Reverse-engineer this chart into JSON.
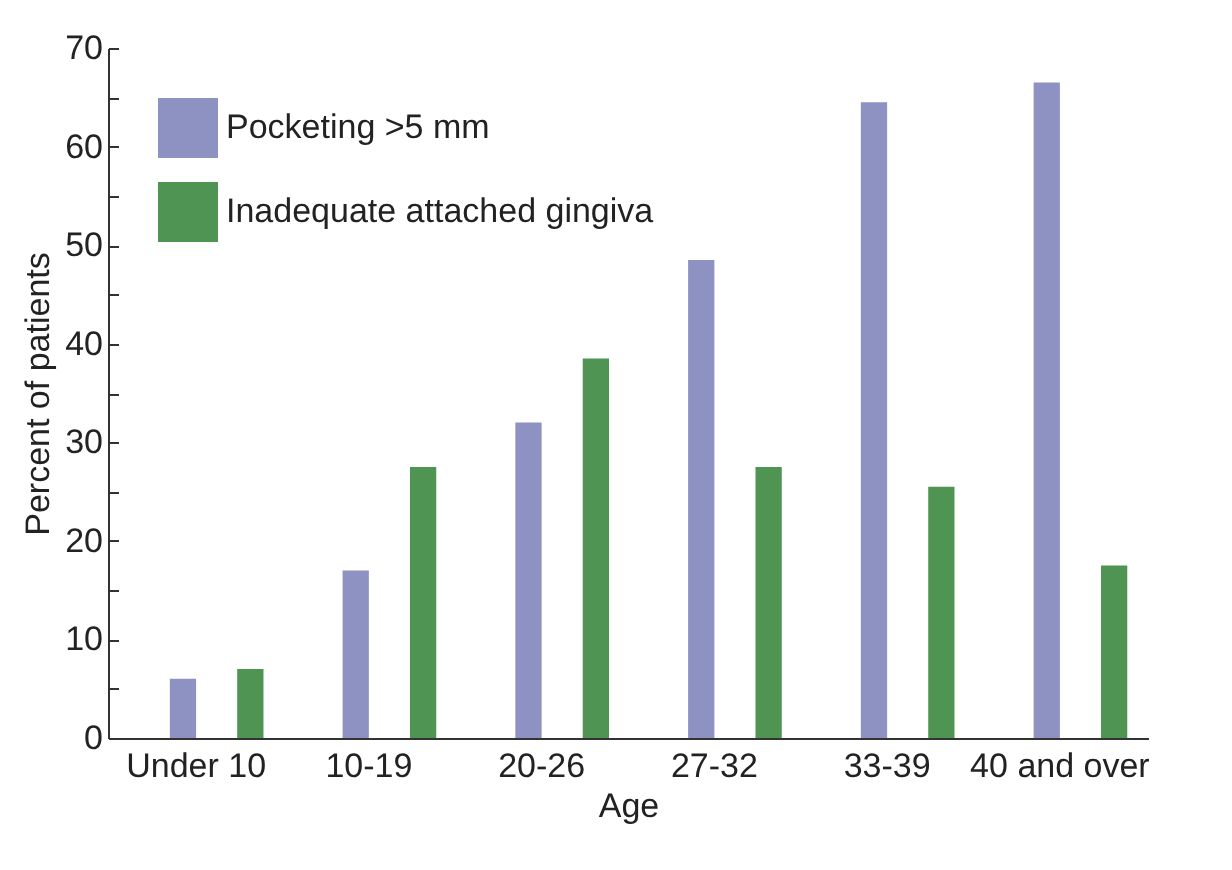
{
  "chart_data": {
    "type": "bar",
    "xlabel": "Age",
    "ylabel": "Percent of patients",
    "categories": [
      "Under 10",
      "10-19",
      "20-26",
      "27-32",
      "33-39",
      "40 and over"
    ],
    "series": [
      {
        "name": "Pocketing >5 mm",
        "color": "#8e92c2",
        "values": [
          6,
          17,
          32,
          48.5,
          64.5,
          66.5
        ]
      },
      {
        "name": "Inadequate attached gingiva",
        "color": "#4f9452",
        "values": [
          7,
          27.5,
          38.5,
          27.5,
          25.5,
          17.5
        ]
      }
    ],
    "ylim": [
      0,
      70
    ],
    "yticks": [
      0,
      {
        "value": 5,
        "label": null
      },
      10,
      {
        "value": 15,
        "label": null
      },
      20,
      {
        "value": 25,
        "label": null
      },
      30,
      {
        "value": 35,
        "label": null
      },
      40,
      {
        "value": 45,
        "label": null
      },
      50,
      {
        "value": 55,
        "label": null
      },
      60,
      {
        "value": 65,
        "label": null
      },
      70
    ],
    "grid": false,
    "legend": "top left"
  }
}
